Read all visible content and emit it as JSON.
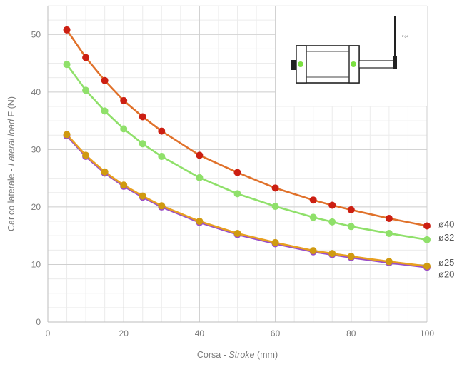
{
  "chart_data": {
    "type": "line",
    "xlabel_parts": [
      "Corsa - ",
      "Stroke",
      " (mm)"
    ],
    "ylabel_parts": [
      "Carico laterale - ",
      "Lateral load",
      "  F (N)"
    ],
    "xlim": [
      0,
      100
    ],
    "ylim": [
      0,
      55
    ],
    "xticks": [
      0,
      20,
      40,
      60,
      80,
      100
    ],
    "yticks": [
      0,
      10,
      20,
      30,
      40,
      50
    ],
    "grid": true,
    "inset_label": "F (N)",
    "series": [
      {
        "name": "ø40",
        "line_color": "#e0712a",
        "marker_color": "#cc1f12",
        "x": [
          5,
          10,
          15,
          20,
          25,
          30,
          40,
          50,
          60,
          70,
          75,
          80,
          90,
          100
        ],
        "y": [
          50.8,
          46.0,
          42.0,
          38.5,
          35.7,
          33.2,
          29.0,
          26.0,
          23.3,
          21.2,
          20.3,
          19.5,
          18.0,
          16.7
        ]
      },
      {
        "name": "ø32",
        "line_color": "#8fe06a",
        "marker_color": "#8fe06a",
        "x": [
          5,
          10,
          15,
          20,
          25,
          30,
          40,
          50,
          60,
          70,
          75,
          80,
          90,
          100
        ],
        "y": [
          44.8,
          40.3,
          36.7,
          33.6,
          31.0,
          28.8,
          25.1,
          22.3,
          20.1,
          18.2,
          17.4,
          16.6,
          15.4,
          14.3
        ]
      },
      {
        "name": "ø25",
        "line_color": "#e8a020",
        "marker_color": "#d09a10",
        "x": [
          5,
          10,
          15,
          20,
          25,
          30,
          40,
          50,
          60,
          70,
          75,
          80,
          90,
          100
        ],
        "y": [
          32.6,
          29.0,
          26.1,
          23.8,
          21.9,
          20.2,
          17.5,
          15.4,
          13.8,
          12.4,
          11.9,
          11.4,
          10.5,
          9.7
        ]
      },
      {
        "name": "ø20",
        "line_color": "#9a4ec8",
        "marker_color": "#9a4ec8",
        "x": [
          5,
          10,
          15,
          20,
          25,
          30,
          40,
          50,
          60,
          70,
          75,
          80,
          90,
          100
        ],
        "y": [
          32.4,
          28.8,
          25.9,
          23.6,
          21.7,
          20.0,
          17.3,
          15.2,
          13.6,
          12.2,
          11.7,
          11.2,
          10.3,
          9.5
        ]
      }
    ]
  }
}
